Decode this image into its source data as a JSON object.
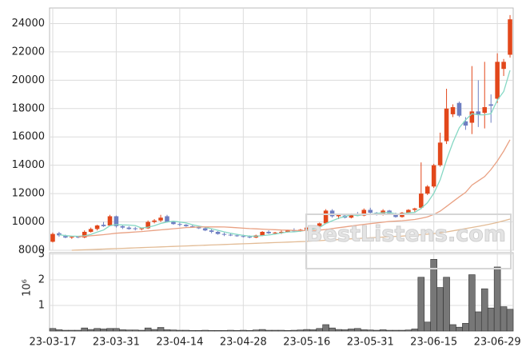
{
  "chart_data": [
    {
      "type": "candlestick",
      "watermark": "BestListens.com",
      "ylim": [
        8000,
        25100
      ],
      "yticks": [
        8000,
        10000,
        12000,
        14000,
        16000,
        18000,
        20000,
        22000,
        24000
      ],
      "grid": true,
      "up_color": "#e2471b",
      "down_color": "#6e7fc2",
      "open": [
        8600,
        9200,
        9000,
        8900,
        8950,
        8900,
        9300,
        9500,
        9800,
        9750,
        10400,
        9700,
        9600,
        9550,
        9500,
        9550,
        10000,
        10100,
        10400,
        10000,
        9850,
        9800,
        9700,
        9650,
        9550,
        9400,
        9300,
        9150,
        9100,
        9050,
        9000,
        8950,
        8900,
        9050,
        9300,
        9200,
        9250,
        9300,
        9400,
        9350,
        9450,
        9600,
        9700,
        9900,
        10800,
        10400,
        10450,
        10300,
        10550,
        10450,
        10850,
        10650,
        10500,
        10800,
        10550,
        10350,
        10650,
        10850,
        11000,
        12000,
        12500,
        14000,
        15700,
        17600,
        18400,
        17100,
        17000,
        17800,
        17700,
        18300,
        18700,
        20800,
        21800
      ],
      "high": [
        9250,
        9300,
        9100,
        9000,
        9000,
        9400,
        9600,
        9800,
        10000,
        10500,
        10450,
        9800,
        9700,
        9650,
        9600,
        10100,
        10200,
        10500,
        10500,
        10050,
        9950,
        9850,
        9800,
        9700,
        9650,
        9500,
        9350,
        9250,
        9200,
        9150,
        9100,
        9050,
        9100,
        9350,
        9400,
        9300,
        9400,
        9450,
        9550,
        9500,
        9650,
        9750,
        9950,
        10900,
        10900,
        10550,
        10550,
        10600,
        10700,
        10950,
        11000,
        10700,
        10900,
        10850,
        10650,
        10700,
        10900,
        11000,
        14200,
        12600,
        14100,
        16300,
        19400,
        18300,
        18500,
        17400,
        21000,
        20000,
        21300,
        19000,
        21900,
        21500,
        24600
      ],
      "low": [
        8550,
        8950,
        8850,
        8800,
        8850,
        8850,
        9250,
        9400,
        9650,
        9700,
        9600,
        9500,
        9450,
        9400,
        9400,
        9500,
        9900,
        10000,
        9950,
        9800,
        9700,
        9650,
        9600,
        9500,
        9350,
        9200,
        9100,
        9000,
        9000,
        8950,
        8900,
        8850,
        8850,
        9000,
        9150,
        9100,
        9150,
        9250,
        9300,
        9300,
        9400,
        9500,
        9650,
        9850,
        10300,
        10200,
        10250,
        10250,
        10400,
        10400,
        10600,
        10450,
        10450,
        10500,
        10300,
        10300,
        10600,
        10700,
        10900,
        11900,
        12400,
        13900,
        15500,
        17400,
        17400,
        16500,
        16200,
        16700,
        16600,
        17000,
        18400,
        20300,
        21600
      ],
      "close": [
        9150,
        9050,
        8900,
        8950,
        8900,
        9300,
        9500,
        9750,
        9700,
        10400,
        9700,
        9600,
        9500,
        9500,
        9550,
        10000,
        10100,
        10300,
        10000,
        9850,
        9800,
        9700,
        9650,
        9550,
        9400,
        9300,
        9150,
        9100,
        9050,
        9000,
        8950,
        8900,
        9050,
        9300,
        9200,
        9250,
        9300,
        9400,
        9350,
        9450,
        9600,
        9700,
        9900,
        10800,
        10400,
        10500,
        10300,
        10550,
        10450,
        10850,
        10650,
        10500,
        10800,
        10550,
        10350,
        10650,
        10850,
        10950,
        12000,
        12500,
        14000,
        15600,
        18000,
        18100,
        17500,
        16800,
        17800,
        17600,
        18100,
        18200,
        21300,
        21300,
        24300
      ],
      "series": [
        {
          "color": "#86d8c4",
          "values": [
            null,
            9100,
            9030,
            9000,
            8990,
            9020,
            9120,
            9280,
            9430,
            9730,
            9810,
            9790,
            9780,
            9740,
            9570,
            9630,
            9730,
            9890,
            9990,
            10050,
            9990,
            9930,
            9800,
            9710,
            9620,
            9520,
            9410,
            9300,
            9200,
            9120,
            9050,
            9000,
            8990,
            9040,
            9080,
            9140,
            9220,
            9290,
            9300,
            9350,
            9420,
            9500,
            9600,
            9890,
            10080,
            10260,
            10380,
            10510,
            10440,
            10530,
            10560,
            10600,
            10650,
            10670,
            10570,
            10570,
            10640,
            10670,
            10960,
            11350,
            12020,
            12970,
            14380,
            15600,
            16640,
            17200,
            17640,
            17560,
            17560,
            17640,
            18600,
            19200,
            20700
          ]
        },
        {
          "color": "#e9a183",
          "values": [
            null,
            null,
            null,
            null,
            8950,
            8980,
            9020,
            9060,
            9100,
            9150,
            9200,
            9230,
            9260,
            9290,
            9320,
            9360,
            9400,
            9440,
            9480,
            9520,
            9560,
            9600,
            9620,
            9640,
            9650,
            9650,
            9650,
            9640,
            9620,
            9590,
            9560,
            9530,
            9510,
            9490,
            9470,
            9450,
            9430,
            9420,
            9400,
            9390,
            9390,
            9400,
            9420,
            9470,
            9530,
            9590,
            9650,
            9710,
            9770,
            9830,
            9880,
            9930,
            9980,
            10030,
            10060,
            10090,
            10130,
            10170,
            10260,
            10360,
            10530,
            10760,
            11090,
            11430,
            11770,
            12080,
            12600,
            12900,
            13200,
            13700,
            14300,
            15000,
            15800
          ]
        },
        {
          "color": "#e2bb95",
          "values": [
            null,
            null,
            null,
            8000,
            8017,
            8034,
            8051,
            8068,
            8085,
            8102,
            8119,
            8136,
            8153,
            8170,
            8187,
            8204,
            8221,
            8238,
            8255,
            8272,
            8289,
            8306,
            8323,
            8340,
            8357,
            8374,
            8391,
            8408,
            8425,
            8442,
            8459,
            8476,
            8493,
            8510,
            8527,
            8544,
            8561,
            8578,
            8595,
            8612,
            8629,
            8655,
            8680,
            8705,
            8730,
            8755,
            8780,
            8805,
            8830,
            8855,
            8880,
            8905,
            8930,
            8955,
            8980,
            9000,
            9030,
            9060,
            9100,
            9140,
            9180,
            9230,
            9290,
            9370,
            9450,
            9530,
            9610,
            9690,
            9770,
            9860,
            9960,
            10080,
            10200
          ]
        }
      ]
    },
    {
      "type": "bar",
      "ylabel": "10⁶",
      "ylim": [
        0,
        3.06
      ],
      "yticks": [
        1,
        2,
        3
      ],
      "grid": true,
      "color": "#777777",
      "categories": [
        "23-03-17",
        null,
        null,
        null,
        null,
        null,
        null,
        null,
        null,
        null,
        "23-03-31",
        null,
        null,
        null,
        null,
        null,
        null,
        null,
        null,
        null,
        "23-04-14",
        null,
        null,
        null,
        null,
        null,
        null,
        null,
        null,
        null,
        "23-04-28",
        null,
        null,
        null,
        null,
        null,
        null,
        null,
        null,
        null,
        "23-05-16",
        null,
        null,
        null,
        null,
        null,
        null,
        null,
        null,
        null,
        "23-05-31",
        null,
        null,
        null,
        null,
        null,
        null,
        null,
        null,
        null,
        "23-06-15",
        null,
        null,
        null,
        null,
        null,
        null,
        null,
        null,
        null,
        "23-06-29",
        null,
        null
      ],
      "values": [
        0.1,
        0.05,
        0.03,
        0.03,
        0.03,
        0.12,
        0.06,
        0.1,
        0.08,
        0.1,
        0.1,
        0.05,
        0.04,
        0.04,
        0.03,
        0.12,
        0.06,
        0.14,
        0.05,
        0.04,
        0.03,
        0.03,
        0.02,
        0.02,
        0.03,
        0.02,
        0.02,
        0.02,
        0.03,
        0.02,
        0.03,
        0.02,
        0.04,
        0.06,
        0.03,
        0.03,
        0.03,
        0.02,
        0.03,
        0.04,
        0.06,
        0.05,
        0.1,
        0.25,
        0.12,
        0.06,
        0.05,
        0.08,
        0.1,
        0.05,
        0.04,
        0.03,
        0.05,
        0.03,
        0.03,
        0.03,
        0.04,
        0.08,
        2.1,
        0.35,
        2.8,
        1.7,
        2.1,
        0.25,
        0.15,
        0.3,
        2.2,
        0.75,
        1.65,
        0.9,
        2.5,
        0.95,
        0.85
      ]
    }
  ]
}
